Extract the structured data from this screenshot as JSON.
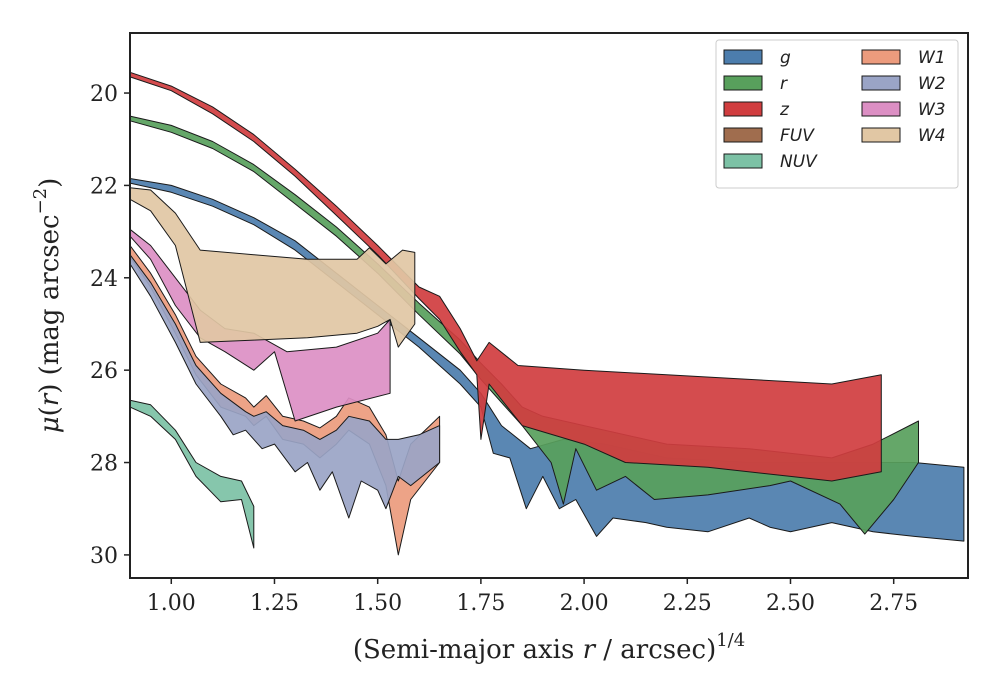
{
  "chart_data": {
    "type": "area",
    "xlabel": "(Semi-major axis r / arcsec)^{1/4}",
    "ylabel": "μ(r) (mag arcsec^{−2})",
    "xlim": [
      0.9,
      2.93
    ],
    "ylim": [
      30.5,
      18.7
    ],
    "y_inverted": true,
    "x_ticks": [
      "1.00",
      "1.25",
      "1.50",
      "1.75",
      "2.00",
      "2.25",
      "2.50",
      "2.75"
    ],
    "x_tick_values": [
      1.0,
      1.25,
      1.5,
      1.75,
      2.0,
      2.25,
      2.5,
      2.75
    ],
    "y_ticks": [
      "20",
      "22",
      "24",
      "26",
      "28",
      "30"
    ],
    "y_tick_values": [
      20,
      22,
      24,
      26,
      28,
      30
    ],
    "legend": {
      "placement": "top-right",
      "columns": 2
    },
    "series": [
      {
        "name": "g",
        "color": "#4c7dad",
        "upper": [
          [
            0.9,
            21.85
          ],
          [
            1.0,
            22.0
          ],
          [
            1.1,
            22.3
          ],
          [
            1.2,
            22.7
          ],
          [
            1.3,
            23.2
          ],
          [
            1.4,
            23.9
          ],
          [
            1.5,
            24.6
          ],
          [
            1.6,
            25.3
          ],
          [
            1.7,
            26.0
          ],
          [
            1.75,
            26.5
          ],
          [
            1.8,
            27.2
          ],
          [
            1.87,
            27.7
          ],
          [
            1.95,
            27.5
          ],
          [
            2.05,
            27.6
          ],
          [
            2.2,
            27.9
          ],
          [
            2.4,
            28.0
          ],
          [
            2.6,
            28.0
          ],
          [
            2.8,
            28.0
          ],
          [
            2.92,
            28.1
          ]
        ],
        "lower": [
          [
            0.9,
            21.95
          ],
          [
            1.0,
            22.15
          ],
          [
            1.1,
            22.45
          ],
          [
            1.2,
            22.85
          ],
          [
            1.3,
            23.4
          ],
          [
            1.4,
            24.1
          ],
          [
            1.5,
            24.8
          ],
          [
            1.6,
            25.5
          ],
          [
            1.7,
            26.3
          ],
          [
            1.75,
            26.8
          ],
          [
            1.78,
            27.8
          ],
          [
            1.82,
            27.9
          ],
          [
            1.86,
            29.0
          ],
          [
            1.9,
            28.3
          ],
          [
            1.94,
            29.0
          ],
          [
            1.98,
            28.8
          ],
          [
            2.03,
            29.6
          ],
          [
            2.07,
            29.2
          ],
          [
            2.15,
            29.3
          ],
          [
            2.2,
            29.4
          ],
          [
            2.3,
            29.5
          ],
          [
            2.4,
            29.2
          ],
          [
            2.45,
            29.4
          ],
          [
            2.5,
            29.5
          ],
          [
            2.6,
            29.3
          ],
          [
            2.7,
            29.5
          ],
          [
            2.8,
            29.6
          ],
          [
            2.92,
            29.7
          ]
        ]
      },
      {
        "name": "r",
        "color": "#58a05c",
        "upper": [
          [
            0.9,
            20.5
          ],
          [
            1.0,
            20.7
          ],
          [
            1.1,
            21.05
          ],
          [
            1.2,
            21.55
          ],
          [
            1.3,
            22.2
          ],
          [
            1.4,
            22.9
          ],
          [
            1.5,
            23.7
          ],
          [
            1.6,
            24.55
          ],
          [
            1.7,
            25.35
          ],
          [
            1.75,
            25.85
          ],
          [
            1.8,
            26.3
          ],
          [
            1.85,
            26.8
          ],
          [
            1.9,
            27.0
          ],
          [
            2.0,
            27.2
          ],
          [
            2.2,
            27.6
          ],
          [
            2.4,
            27.7
          ],
          [
            2.6,
            27.9
          ],
          [
            2.7,
            27.6
          ],
          [
            2.81,
            27.1
          ]
        ],
        "lower": [
          [
            0.9,
            20.6
          ],
          [
            1.0,
            20.85
          ],
          [
            1.1,
            21.2
          ],
          [
            1.2,
            21.7
          ],
          [
            1.3,
            22.4
          ],
          [
            1.4,
            23.1
          ],
          [
            1.5,
            23.9
          ],
          [
            1.6,
            24.8
          ],
          [
            1.7,
            25.65
          ],
          [
            1.75,
            26.2
          ],
          [
            1.8,
            26.7
          ],
          [
            1.85,
            27.2
          ],
          [
            1.92,
            28.0
          ],
          [
            1.95,
            28.9
          ],
          [
            1.98,
            27.7
          ],
          [
            2.03,
            28.6
          ],
          [
            2.1,
            28.3
          ],
          [
            2.17,
            28.8
          ],
          [
            2.3,
            28.7
          ],
          [
            2.45,
            28.5
          ],
          [
            2.5,
            28.4
          ],
          [
            2.62,
            28.9
          ],
          [
            2.68,
            29.55
          ],
          [
            2.75,
            28.8
          ],
          [
            2.81,
            28.0
          ]
        ]
      },
      {
        "name": "z",
        "color": "#d03d3f",
        "upper": [
          [
            0.9,
            19.55
          ],
          [
            1.0,
            19.85
          ],
          [
            1.1,
            20.3
          ],
          [
            1.2,
            20.9
          ],
          [
            1.3,
            21.65
          ],
          [
            1.4,
            22.45
          ],
          [
            1.5,
            23.3
          ],
          [
            1.6,
            24.2
          ],
          [
            1.65,
            24.4
          ],
          [
            1.7,
            25.1
          ],
          [
            1.74,
            25.8
          ],
          [
            1.77,
            25.4
          ],
          [
            1.84,
            25.9
          ],
          [
            2.0,
            26.0
          ],
          [
            2.2,
            26.1
          ],
          [
            2.4,
            26.2
          ],
          [
            2.6,
            26.3
          ],
          [
            2.72,
            26.1
          ]
        ],
        "lower": [
          [
            0.9,
            19.65
          ],
          [
            1.0,
            19.95
          ],
          [
            1.1,
            20.45
          ],
          [
            1.2,
            21.05
          ],
          [
            1.3,
            21.8
          ],
          [
            1.4,
            22.65
          ],
          [
            1.5,
            23.5
          ],
          [
            1.6,
            24.45
          ],
          [
            1.65,
            24.9
          ],
          [
            1.7,
            25.6
          ],
          [
            1.74,
            26.1
          ],
          [
            1.75,
            27.5
          ],
          [
            1.77,
            26.3
          ],
          [
            1.85,
            27.2
          ],
          [
            2.0,
            27.6
          ],
          [
            2.1,
            28.0
          ],
          [
            2.3,
            28.1
          ],
          [
            2.5,
            28.3
          ],
          [
            2.6,
            28.4
          ],
          [
            2.72,
            28.2
          ]
        ]
      },
      {
        "name": "FUV",
        "color": "#a06d4e",
        "upper": [],
        "lower": []
      },
      {
        "name": "NUV",
        "color": "#7cc1a5",
        "upper": [
          [
            0.9,
            26.65
          ],
          [
            0.95,
            26.75
          ],
          [
            1.01,
            27.3
          ],
          [
            1.06,
            28.0
          ],
          [
            1.12,
            28.3
          ],
          [
            1.17,
            28.4
          ],
          [
            1.2,
            28.95
          ]
        ],
        "lower": [
          [
            0.9,
            26.8
          ],
          [
            0.95,
            27.0
          ],
          [
            1.01,
            27.5
          ],
          [
            1.06,
            28.3
          ],
          [
            1.12,
            28.85
          ],
          [
            1.17,
            28.8
          ],
          [
            1.2,
            29.85
          ]
        ]
      },
      {
        "name": "W1",
        "color": "#ec9b7d",
        "upper": [
          [
            0.9,
            23.3
          ],
          [
            0.95,
            23.9
          ],
          [
            1.01,
            24.8
          ],
          [
            1.06,
            25.7
          ],
          [
            1.12,
            26.3
          ],
          [
            1.18,
            26.6
          ],
          [
            1.2,
            26.8
          ],
          [
            1.23,
            26.55
          ],
          [
            1.27,
            27.0
          ],
          [
            1.32,
            27.1
          ],
          [
            1.36,
            27.25
          ],
          [
            1.4,
            27.0
          ],
          [
            1.43,
            26.6
          ],
          [
            1.48,
            26.8
          ],
          [
            1.52,
            27.4
          ],
          [
            1.55,
            28.4
          ],
          [
            1.58,
            27.6
          ],
          [
            1.65,
            27.0
          ]
        ],
        "lower": [
          [
            0.9,
            23.55
          ],
          [
            0.95,
            24.2
          ],
          [
            1.01,
            25.2
          ],
          [
            1.06,
            26.1
          ],
          [
            1.12,
            26.8
          ],
          [
            1.18,
            27.0
          ],
          [
            1.2,
            27.2
          ],
          [
            1.23,
            27.0
          ],
          [
            1.27,
            27.5
          ],
          [
            1.32,
            27.6
          ],
          [
            1.36,
            27.9
          ],
          [
            1.4,
            27.6
          ],
          [
            1.43,
            27.3
          ],
          [
            1.48,
            27.6
          ],
          [
            1.52,
            28.5
          ],
          [
            1.55,
            30.0
          ],
          [
            1.58,
            28.8
          ],
          [
            1.65,
            28.0
          ]
        ]
      },
      {
        "name": "W2",
        "color": "#9aa4c6",
        "upper": [
          [
            0.9,
            23.5
          ],
          [
            0.95,
            24.1
          ],
          [
            1.01,
            25.0
          ],
          [
            1.06,
            25.9
          ],
          [
            1.12,
            26.5
          ],
          [
            1.18,
            26.9
          ],
          [
            1.2,
            27.0
          ],
          [
            1.23,
            26.9
          ],
          [
            1.27,
            27.2
          ],
          [
            1.32,
            27.3
          ],
          [
            1.36,
            27.5
          ],
          [
            1.4,
            27.3
          ],
          [
            1.43,
            27.0
          ],
          [
            1.48,
            27.1
          ],
          [
            1.52,
            27.5
          ],
          [
            1.55,
            27.5
          ],
          [
            1.6,
            27.4
          ],
          [
            1.65,
            27.2
          ]
        ],
        "lower": [
          [
            0.9,
            23.7
          ],
          [
            0.95,
            24.4
          ],
          [
            1.01,
            25.4
          ],
          [
            1.06,
            26.3
          ],
          [
            1.12,
            27.0
          ],
          [
            1.15,
            27.4
          ],
          [
            1.18,
            27.3
          ],
          [
            1.22,
            27.7
          ],
          [
            1.25,
            27.6
          ],
          [
            1.3,
            28.2
          ],
          [
            1.33,
            28.0
          ],
          [
            1.36,
            28.6
          ],
          [
            1.39,
            28.2
          ],
          [
            1.43,
            29.2
          ],
          [
            1.46,
            28.4
          ],
          [
            1.5,
            28.6
          ],
          [
            1.52,
            29.0
          ],
          [
            1.55,
            28.3
          ],
          [
            1.58,
            28.5
          ],
          [
            1.65,
            28.0
          ]
        ]
      },
      {
        "name": "W3",
        "color": "#dc8fc4",
        "upper": [
          [
            0.9,
            22.95
          ],
          [
            0.95,
            23.3
          ],
          [
            1.01,
            24.0
          ],
          [
            1.07,
            24.7
          ],
          [
            1.13,
            25.1
          ],
          [
            1.2,
            25.2
          ],
          [
            1.28,
            25.6
          ],
          [
            1.4,
            25.5
          ],
          [
            1.5,
            25.2
          ],
          [
            1.53,
            24.9
          ]
        ],
        "lower": [
          [
            0.9,
            23.1
          ],
          [
            0.95,
            23.6
          ],
          [
            1.01,
            24.6
          ],
          [
            1.07,
            25.3
          ],
          [
            1.13,
            25.6
          ],
          [
            1.2,
            26.0
          ],
          [
            1.25,
            25.6
          ],
          [
            1.3,
            27.1
          ],
          [
            1.4,
            26.8
          ],
          [
            1.53,
            26.5
          ]
        ]
      },
      {
        "name": "W4",
        "color": "#e1c7a4",
        "upper": [
          [
            0.9,
            22.05
          ],
          [
            0.95,
            22.1
          ],
          [
            1.01,
            22.6
          ],
          [
            1.07,
            23.4
          ],
          [
            1.2,
            23.5
          ],
          [
            1.33,
            23.6
          ],
          [
            1.45,
            23.6
          ],
          [
            1.48,
            23.35
          ],
          [
            1.52,
            23.7
          ],
          [
            1.56,
            23.4
          ],
          [
            1.59,
            23.45
          ]
        ],
        "lower": [
          [
            0.9,
            22.3
          ],
          [
            0.95,
            22.55
          ],
          [
            1.01,
            23.3
          ],
          [
            1.07,
            25.4
          ],
          [
            1.2,
            25.35
          ],
          [
            1.33,
            25.3
          ],
          [
            1.45,
            25.2
          ],
          [
            1.5,
            25.05
          ],
          [
            1.53,
            24.9
          ],
          [
            1.55,
            25.5
          ],
          [
            1.59,
            25.0
          ]
        ]
      }
    ]
  }
}
